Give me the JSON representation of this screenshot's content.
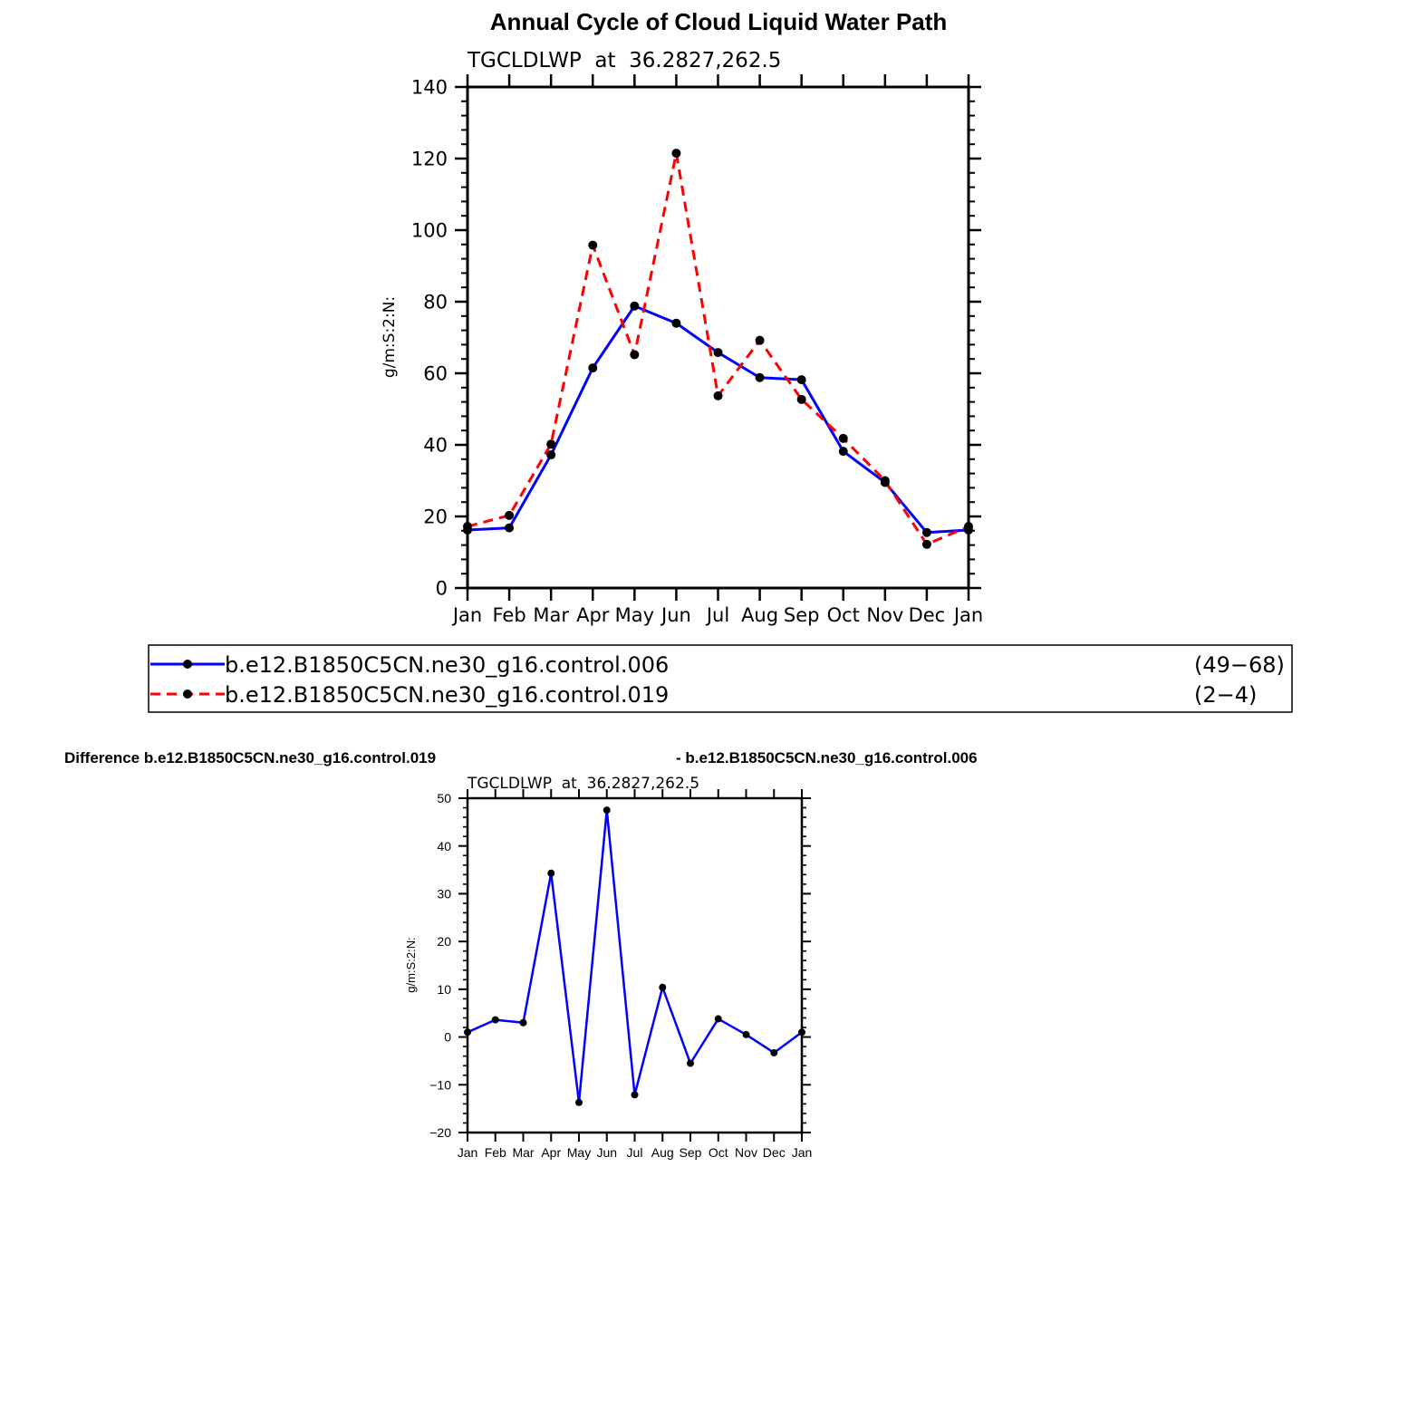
{
  "figure": {
    "title": "Annual Cycle of Cloud Liquid Water Path",
    "difference_left": "Difference b.e12.B1850C5CN.ne30_g16.control.019",
    "difference_right": "- b.e12.B1850C5CN.ne30_g16.control.006"
  },
  "chart_data": [
    {
      "type": "line",
      "subtitle": "TGCLDLWP  at  36.2827,262.5",
      "ylabel": "g/m:S:2:N:",
      "xlabel": "",
      "ylim": [
        0,
        140
      ],
      "yticks": [
        0,
        20,
        40,
        60,
        80,
        100,
        120,
        140
      ],
      "categories": [
        "Jan",
        "Feb",
        "Mar",
        "Apr",
        "May",
        "Jun",
        "Jul",
        "Aug",
        "Sep",
        "Oct",
        "Nov",
        "Dec",
        "Jan"
      ],
      "grid": false,
      "legend_position": "below",
      "series": [
        {
          "name": "b.e12.B1850C5CN.ne30_g16.control.006",
          "range_label": "(49−68)",
          "color": "#0000ff",
          "dash": "solid",
          "values": [
            16.2,
            16.8,
            37.2,
            61.5,
            78.8,
            74.0,
            65.8,
            58.8,
            58.2,
            38.2,
            29.5,
            15.5,
            16.2
          ]
        },
        {
          "name": "b.e12.B1850C5CN.ne30_g16.control.019",
          "range_label": "(2−4)",
          "color": "#ff0000",
          "dash": "dashed",
          "values": [
            17.2,
            20.3,
            40.2,
            95.8,
            65.2,
            121.5,
            53.7,
            69.2,
            52.7,
            41.8,
            30.0,
            12.2,
            17.2
          ]
        }
      ]
    },
    {
      "type": "line",
      "subtitle": "TGCLDLWP  at  36.2827,262.5",
      "ylabel": "g/m:S:2:N:",
      "xlabel": "",
      "ylim": [
        -20,
        50
      ],
      "yticks": [
        -20,
        -10,
        0,
        10,
        20,
        30,
        40,
        50
      ],
      "categories": [
        "Jan",
        "Feb",
        "Mar",
        "Apr",
        "May",
        "Jun",
        "Jul",
        "Aug",
        "Sep",
        "Oct",
        "Nov",
        "Dec",
        "Jan"
      ],
      "grid": false,
      "series": [
        {
          "color": "#0000ff",
          "dash": "solid",
          "values": [
            1.0,
            3.6,
            3.0,
            34.3,
            -13.7,
            47.5,
            -12.1,
            10.4,
            -5.5,
            3.8,
            0.5,
            -3.3,
            1.0
          ]
        }
      ]
    }
  ]
}
